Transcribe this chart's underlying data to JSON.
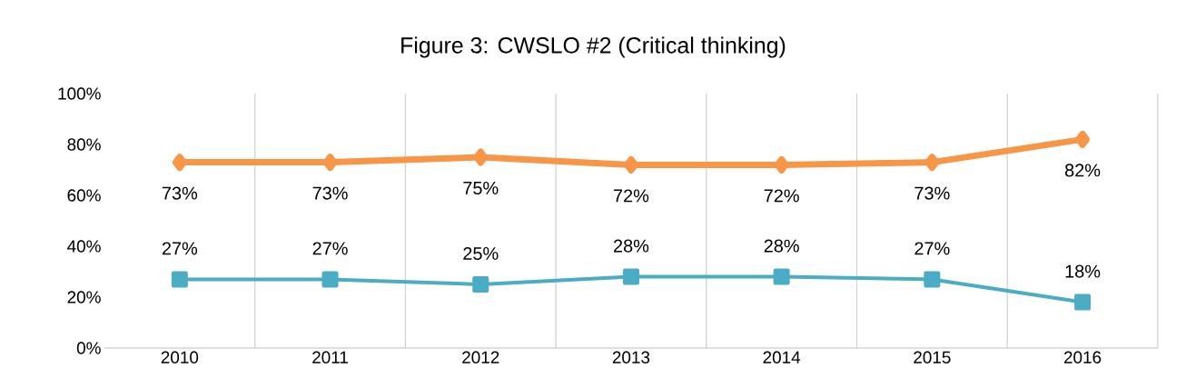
{
  "chart_data": {
    "type": "line",
    "title": "Figure 3: CWSLO #2 (Critical thinking)",
    "categories": [
      "2010",
      "2011",
      "2012",
      "2013",
      "2014",
      "2015",
      "2016"
    ],
    "ylim": [
      0,
      100
    ],
    "yticks": [
      {
        "value": 0,
        "label": "0%"
      },
      {
        "value": 20,
        "label": "20%"
      },
      {
        "value": 40,
        "label": "40%"
      },
      {
        "value": 60,
        "label": "60%"
      },
      {
        "value": 80,
        "label": "80%"
      },
      {
        "value": 100,
        "label": "100%"
      }
    ],
    "grid": "x",
    "series": [
      {
        "color": "#f79646",
        "marker": "diamond",
        "values": [
          73,
          73,
          75,
          72,
          72,
          73,
          82
        ],
        "value_labels": [
          "73%",
          "73%",
          "75%",
          "72%",
          "72%",
          "73%",
          "82%"
        ]
      },
      {
        "color": "#4bacc6",
        "marker": "square",
        "values": [
          27,
          27,
          25,
          28,
          28,
          27,
          18
        ],
        "value_labels": [
          "27%",
          "27%",
          "25%",
          "28%",
          "28%",
          "27%",
          "18%"
        ]
      }
    ]
  }
}
